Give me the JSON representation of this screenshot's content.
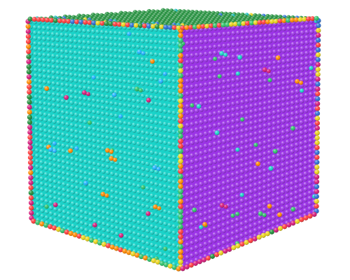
{
  "scene": {
    "subject": "atomic-cube-lattice",
    "background_color": "#ffffff",
    "faces": {
      "top": {
        "base_color": "#1f8f3a",
        "accent_colors": [
          "#2a6fd6",
          "#14b8b8",
          "#e8d21a"
        ]
      },
      "front": {
        "base_color": "#19d3c9",
        "accent_colors": [
          "#2ec16a",
          "#1fb3ff"
        ]
      },
      "right": {
        "base_color": "#9b34e6",
        "accent_colors": [
          "#2ec16a",
          "#19d3c9"
        ]
      }
    },
    "edges": {
      "left_vertical": {
        "colors": [
          "#d61a7a",
          "#ff3b3b",
          "#1f8f3a",
          "#ff8a00"
        ]
      },
      "front_right_vertical": {
        "colors": [
          "#ff3b3b",
          "#ff8a00",
          "#e8d21a",
          "#2ec16a"
        ]
      },
      "right_vertical": {
        "colors": [
          "#d61a7a",
          "#ff3b3b",
          "#2a6fd6",
          "#e8d21a"
        ]
      },
      "bottom_front": {
        "colors": [
          "#ff3b3b",
          "#ff8a00",
          "#e8d21a",
          "#2ec16a"
        ]
      },
      "bottom_right": {
        "colors": [
          "#d61a7a",
          "#ff3b3b",
          "#1f8f3a",
          "#e8d21a"
        ]
      },
      "top_front": {
        "colors": [
          "#2a6fd6",
          "#1f8f3a",
          "#e8d21a",
          "#ff3b3b"
        ]
      },
      "top_right": {
        "colors": [
          "#e8d21a",
          "#ff8a00",
          "#ff3b3b",
          "#2ec16a"
        ]
      }
    },
    "surface_details": {
      "front_face_defects": {
        "count": 22,
        "colors": [
          "#2ec16a",
          "#1fb3ff",
          "#ff8a00",
          "#d61a7a"
        ]
      },
      "right_face_defects": {
        "count": 18,
        "colors": [
          "#2ec16a",
          "#19d3c9",
          "#ff8a00",
          "#d61a7a"
        ]
      }
    }
  }
}
